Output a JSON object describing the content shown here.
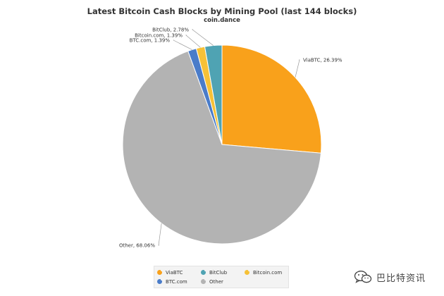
{
  "chart_data": {
    "type": "pie",
    "title": "Latest Bitcoin Cash Blocks by Mining Pool (last 144 blocks)",
    "subtitle": "coin.dance",
    "slices": [
      {
        "name": "ViaBTC",
        "value": 26.39,
        "label": "ViaBTC, 26.39%",
        "color": "#f9a11b"
      },
      {
        "name": "Other",
        "value": 68.06,
        "label": "Other, 68.06%",
        "color": "#b3b3b3"
      },
      {
        "name": "BTC.com",
        "value": 1.39,
        "label": "BTC.com, 1.39%",
        "color": "#4a7cc9"
      },
      {
        "name": "Bitcoin.com",
        "value": 1.39,
        "label": "Bitcoin.com, 1.39%",
        "color": "#f6c137"
      },
      {
        "name": "BitClub",
        "value": 2.78,
        "label": "BitClub, 2.78%",
        "color": "#4fa3b3"
      }
    ],
    "start_angle": "12 o'clock, clockwise",
    "legend": {
      "placement": "bottom",
      "items": [
        {
          "name": "ViaBTC",
          "color": "#f9a11b"
        },
        {
          "name": "BitClub",
          "color": "#4fa3b3"
        },
        {
          "name": "Bitcoin.com",
          "color": "#f6c137"
        },
        {
          "name": "BTC.com",
          "color": "#4a7cc9"
        },
        {
          "name": "Other",
          "color": "#b3b3b3"
        }
      ]
    }
  },
  "watermark": {
    "icon": "wechat-icon",
    "text": "巴比特资讯"
  }
}
